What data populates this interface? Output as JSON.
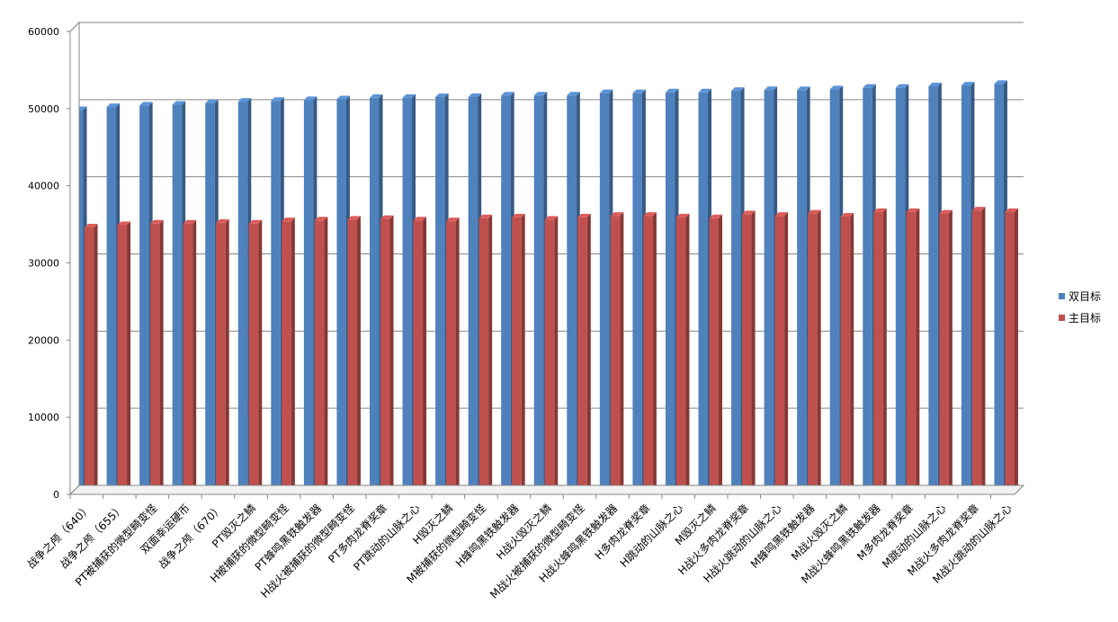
{
  "chart_data": {
    "type": "bar",
    "title": "",
    "xlabel": "",
    "ylabel": "",
    "ylim": [
      0,
      60000
    ],
    "yticks": [
      0,
      10000,
      20000,
      30000,
      40000,
      50000,
      60000
    ],
    "grid": true,
    "legend_position": "right",
    "categories": [
      "战争之颅（640）",
      "战争之颅（655）",
      "PT被捕获的微型畸变怪",
      "双面幸运硬币",
      "战争之颅（670）",
      "PT毁灭之鳞",
      "H被捕获的微型畸变怪",
      "PT蜂鸣黑铁触发器",
      "H战火被捕获的微型畸变怪",
      "PT多肉龙脊奖章",
      "PT跳动的山脉之心",
      "H毁灭之鳞",
      "M被捕获的微型畸变怪",
      "H蜂鸣黑铁触发器",
      "H战火毁灭之鳞",
      "M战火被捕获的微型畸变怪",
      "H战火蜂鸣黑铁触发器",
      "H多肉龙脊奖章",
      "H跳动的山脉之心",
      "M毁灭之鳞",
      "H战火多肉龙脊奖章",
      "H战火跳动的山脉之心",
      "M蜂鸣黑铁触发器",
      "M战火毁灭之鳞",
      "M战火蜂鸣黑铁触发器",
      "M多肉龙脊奖章",
      "M跳动的山脉之心",
      "M战火多肉龙脊奖章",
      "M战火跳动的山脉之心"
    ],
    "series": [
      {
        "name": "双目标",
        "color": "#4F81BD",
        "values": [
          49800,
          50200,
          50400,
          50500,
          50700,
          50900,
          51000,
          51100,
          51200,
          51400,
          51400,
          51500,
          51500,
          51700,
          51700,
          51700,
          52000,
          52000,
          52100,
          52100,
          52300,
          52400,
          52400,
          52500,
          52700,
          52700,
          52900,
          53000,
          53200
        ]
      },
      {
        "name": "主目标",
        "color": "#C0504D",
        "values": [
          34600,
          34900,
          35100,
          35100,
          35200,
          35100,
          35400,
          35500,
          35600,
          35700,
          35500,
          35400,
          35800,
          35900,
          35600,
          35900,
          36100,
          36100,
          35900,
          35800,
          36300,
          36100,
          36400,
          36000,
          36600,
          36600,
          36400,
          36800,
          36600
        ]
      }
    ]
  }
}
